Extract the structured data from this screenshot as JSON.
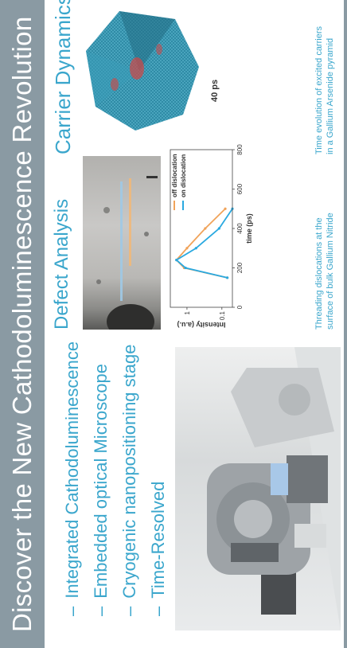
{
  "title": "Discover the New Cathodoluminescence Revolution",
  "features": [
    {
      "dash": "–",
      "label": "Integrated Cathodoluminescence"
    },
    {
      "dash": "–",
      "label": "Embedded optical Microscope"
    },
    {
      "dash": "–",
      "label": "Cryogenic nanopositioning stage"
    },
    {
      "dash": "–",
      "label": "Time-Resolved"
    }
  ],
  "defect": {
    "title": "Defect Analysis",
    "caption_line1": "Threading dislocations at the",
    "caption_line2": "surface of bulk Gallium Nitride"
  },
  "carrier": {
    "title": "Carrier Dynamics",
    "time_label": "40 ps",
    "caption_line1": "Time evolution of excited carriers",
    "caption_line2": "in a Gallium Arsenide pyramid"
  },
  "colors": {
    "accent": "#3aa6cc",
    "banner": "#8a9aa3",
    "off_series": "#f0a35a",
    "on_series": "#2aa9e0"
  },
  "chart_data": {
    "type": "line",
    "xlabel": "time (ps)",
    "ylabel": "Intensity (a.u.)",
    "xlim": [
      0,
      800
    ],
    "yscale": "log",
    "ylim": [
      0.05,
      3
    ],
    "x_ticks": [
      "0",
      "200",
      "400",
      "600",
      "800"
    ],
    "y_ticks": [
      "0.1",
      "1"
    ],
    "legend_position": "top-right",
    "series": [
      {
        "name": "off dislocation",
        "x": [
          150,
          200,
          240,
          300,
          400,
          500
        ],
        "y": [
          0.07,
          1.2,
          2.0,
          1.0,
          0.3,
          0.08
        ]
      },
      {
        "name": "on dislocation",
        "x": [
          150,
          200,
          240,
          300,
          400,
          500
        ],
        "y": [
          0.07,
          1.1,
          2.0,
          0.55,
          0.12,
          0.05
        ]
      }
    ]
  }
}
